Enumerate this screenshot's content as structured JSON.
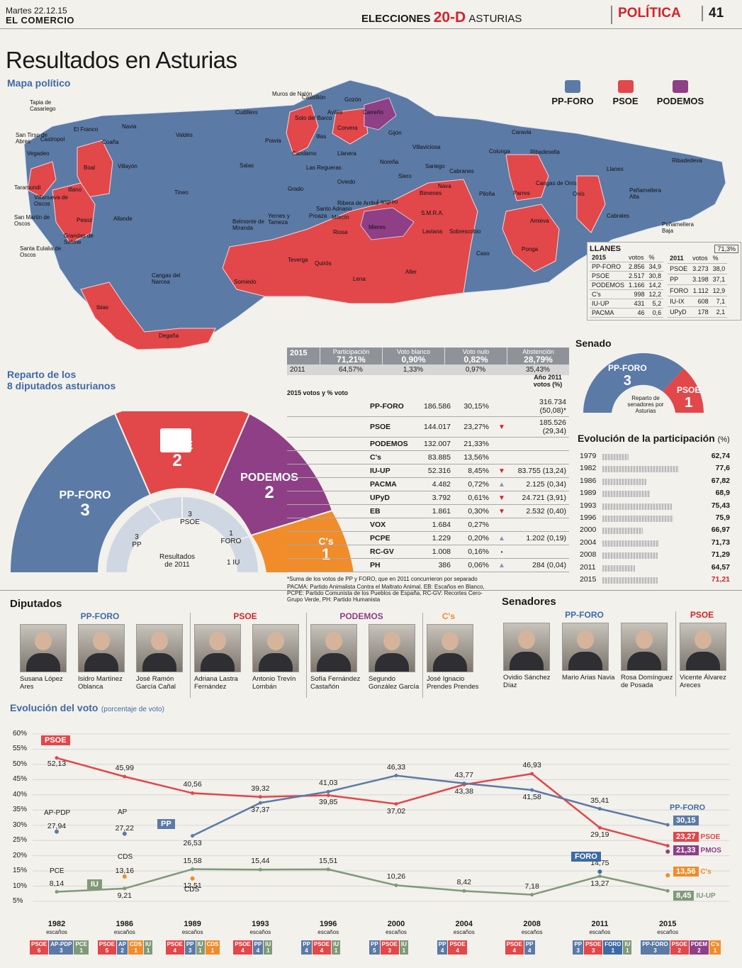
{
  "header": {
    "date": "Martes 22.12.15",
    "paper": "EL COMERCIO",
    "elecciones": "ELECCIONES",
    "code": "20-D",
    "region": "ASTURIAS",
    "section": "POLÍTICA",
    "page": "41"
  },
  "title": "Resultados en Asturias",
  "map": {
    "subtitle": "Mapa político",
    "legend": [
      {
        "name": "PP-FORO",
        "color": "#5b7aa6"
      },
      {
        "name": "PSOE",
        "color": "#e2474a"
      },
      {
        "name": "PODEMOS",
        "color": "#8e3f86"
      }
    ],
    "labels": [
      "Tapia de Casariego",
      "San Tirso de Abres",
      "Castropol",
      "El Franco",
      "Navia",
      "Coaña",
      "Vegadeo",
      "Taramundi",
      "Boal",
      "Villanueva de Oscos",
      "Illano",
      "San Martín de Oscos",
      "Pesoz",
      "Santa Eulalia de Oscos",
      "Grandas de Salime",
      "Villayón",
      "Valdés",
      "Cudillero",
      "Muros de Nalón",
      "Castrillón",
      "Gozón",
      "Carreño",
      "Avilés",
      "Soto del Barco",
      "Corvera",
      "Pravia",
      "Illas",
      "Gijón",
      "Candamo",
      "Llanera",
      "Salas",
      "Las Regueras",
      "Noreña",
      "Villaviciosa",
      "Colunga",
      "Caravia",
      "Ribadesella",
      "Llanes",
      "Ribadedeva",
      "Tineo",
      "Grado",
      "Oviedo",
      "Siero",
      "Sariego",
      "Cabranes",
      "Nava",
      "Piloña",
      "Parres",
      "Cangas de Onís",
      "Onís",
      "Peñamellera Alta",
      "Peñamellera Baja",
      "Cabrales",
      "Allande",
      "Belmonte de Miranda",
      "Yernes y Tameza",
      "Proaza",
      "Santo Adriano",
      "Ribera de Arriba",
      "Morcín",
      "Riosa",
      "Mieres",
      "Langreo",
      "Bimenes",
      "S.M.R.A.",
      "Laviana",
      "Sobrescobio",
      "Caso",
      "Amieva",
      "Ponga",
      "Cangas del Narcea",
      "Teverga",
      "Quirós",
      "Somiedo",
      "Lena",
      "Aller",
      "Ibias",
      "Degaña"
    ]
  },
  "llanes": {
    "title": "LLANES",
    "pct": "71,3%",
    "y2015": "2015",
    "y2011": "2011",
    "h_votos": "votos",
    "h_pct": "%",
    "rows2015": [
      [
        "PP-FORO",
        "2.856",
        "34,9"
      ],
      [
        "PSOE",
        "2.517",
        "30,8"
      ],
      [
        "PODEMOS",
        "1.166",
        "14,2"
      ],
      [
        "C's",
        "998",
        "12,2"
      ],
      [
        "IU-UP",
        "431",
        "5,2"
      ],
      [
        "PACMA",
        "46",
        "0,6"
      ]
    ],
    "rows2011": [
      [
        "PSOE",
        "3.273",
        "38,0"
      ],
      [
        "PP",
        "3.198",
        "37,1"
      ],
      [
        "FORO",
        "1.112",
        "12,9"
      ],
      [
        "IU-IX",
        "608",
        "7,1"
      ],
      [
        "UPyD",
        "178",
        "2,1"
      ]
    ]
  },
  "senado": {
    "title": "Senado",
    "ppforo_label": "PP-FORO",
    "ppforo_seats": "3",
    "psoe_label": "PSOE",
    "psoe_seats": "1",
    "center": "Reparto de senadores por Asturias"
  },
  "reparto": {
    "title1": "Reparto de los",
    "title2": "8 diputados asturianos",
    "psoe_label": "PSOE",
    "psoe_seats": "2",
    "podemos_label": "PODEMOS",
    "podemos_seats": "2",
    "ppforo_label": "PP-FORO",
    "ppforo_seats": "3",
    "cs_label": "C's",
    "cs_seats": "1",
    "r2011_psoe_n": "3",
    "r2011_psoe": "PSOE",
    "r2011_pp_n": "3",
    "r2011_pp": "PP",
    "r2011_foro_n": "1",
    "r2011_foro": "FORO",
    "r2011_iu": "1 IU",
    "r2011_center": "Resultados de 2011"
  },
  "summary": {
    "y2015": "2015",
    "y2011": "2011",
    "cols": [
      "Participación",
      "Voto blanco",
      "Voto nulo",
      "Abstención"
    ],
    "v2015": [
      "71,21%",
      "0,90%",
      "0,82%",
      "28,79%"
    ],
    "v2011": [
      "64,57%",
      "1,33%",
      "0,97%",
      "35,43%"
    ]
  },
  "results": {
    "h1": "2015 votos y % voto",
    "h2": "Año 2011 votos (%)",
    "rows": [
      {
        "party": "PP-FORO",
        "votes": "186.586",
        "pct": "30,15%",
        "arrow": "",
        "v2011": "316.734 (50,08)*"
      },
      {
        "party": "PSOE",
        "votes": "144.017",
        "pct": "23,27%",
        "arrow": "down",
        "v2011": "185.526 (29,34)"
      },
      {
        "party": "PODEMOS",
        "votes": "132.007",
        "pct": "21,33%",
        "arrow": "",
        "v2011": ""
      },
      {
        "party": "C's",
        "votes": "83.885",
        "pct": "13,56%",
        "arrow": "",
        "v2011": ""
      },
      {
        "party": "IU-UP",
        "votes": "52.316",
        "pct": "8,45%",
        "arrow": "down",
        "v2011": "83.755 (13,24)"
      },
      {
        "party": "PACMA",
        "votes": "4.482",
        "pct": "0,72%",
        "arrow": "up",
        "v2011": "2.125 (0,34)"
      },
      {
        "party": "UPyD",
        "votes": "3.792",
        "pct": "0,61%",
        "arrow": "down",
        "v2011": "24.721 (3,91)"
      },
      {
        "party": "EB",
        "votes": "1.861",
        "pct": "0,30%",
        "arrow": "down",
        "v2011": "2.532 (0,40)"
      },
      {
        "party": "VOX",
        "votes": "1.684",
        "pct": "0,27%",
        "arrow": "",
        "v2011": ""
      },
      {
        "party": "PCPE",
        "votes": "1.229",
        "pct": "0,20%",
        "arrow": "up",
        "v2011": "1.202 (0,19)"
      },
      {
        "party": "RC-GV",
        "votes": "1.008",
        "pct": "0,16%",
        "arrow": "dot",
        "v2011": ""
      },
      {
        "party": "PH",
        "votes": "386",
        "pct": "0,06%",
        "arrow": "up",
        "v2011": "284 (0,04)"
      }
    ],
    "note1": "*Suma de los votos de PP y FORO, que en 2011 concurrieron por separado",
    "note2": "PACMA: Partido Animalista Contra el Maltrato Animal. EB: Escaños en Blanco, PCPE: Partido Comunista de los Pueblos de España, RC-GV: Recortes Cero-Grupo Verde, PH: Partido Humanista"
  },
  "participacion": {
    "title": "Evolución de la participación",
    "unit": "(%)",
    "rows": [
      {
        "year": "1979",
        "val": "62,74",
        "n": 62.74
      },
      {
        "year": "1982",
        "val": "77,6",
        "n": 77.6
      },
      {
        "year": "1986",
        "val": "67,82",
        "n": 67.82
      },
      {
        "year": "1989",
        "val": "68,9",
        "n": 68.9
      },
      {
        "year": "1993",
        "val": "75,43",
        "n": 75.43
      },
      {
        "year": "1996",
        "val": "75,9",
        "n": 75.9
      },
      {
        "year": "2000",
        "val": "66,97",
        "n": 66.97
      },
      {
        "year": "2004",
        "val": "71,73",
        "n": 71.73
      },
      {
        "year": "2008",
        "val": "71,29",
        "n": 71.29
      },
      {
        "year": "2011",
        "val": "64,57",
        "n": 64.57
      },
      {
        "year": "2015",
        "val": "71,21",
        "n": 71.21
      }
    ]
  },
  "diputados": {
    "title": "Diputados",
    "groups": [
      {
        "party": "PP-FORO",
        "color": "#3e6aa6",
        "people": [
          "Susana López Ares",
          "Isidro Martínez Oblanca",
          "José Ramón García Cañal"
        ]
      },
      {
        "party": "PSOE",
        "color": "#d2232a",
        "people": [
          "Adriana Lastra Fernández",
          "Antonio Trevín Lombán"
        ]
      },
      {
        "party": "PODEMOS",
        "color": "#8e3f86",
        "people": [
          "Sofía Fernández Castañón",
          "Segundo González García"
        ]
      },
      {
        "party": "C's",
        "color": "#f08c2a",
        "people": [
          "José Ignacio Prendes Prendes"
        ]
      }
    ]
  },
  "senadores": {
    "title": "Senadores",
    "groups": [
      {
        "party": "PP-FORO",
        "color": "#3e6aa6",
        "people": [
          "Ovidio Sánchez Díaz",
          "Mario Arias Navia",
          "Rosa Domínguez de Posada"
        ]
      },
      {
        "party": "PSOE",
        "color": "#d2232a",
        "people": [
          "Vicente Álvarez Areces"
        ]
      }
    ]
  },
  "evolucion": {
    "title": "Evolución del voto",
    "unit": "(porcentaje de voto)",
    "yticks": [
      "60%",
      "55%",
      "50%",
      "45%",
      "40%",
      "35%",
      "30%",
      "25%",
      "20%",
      "15%",
      "10%",
      "5%"
    ],
    "years": [
      "1982",
      "1986",
      "1989",
      "1993",
      "1996",
      "2000",
      "2004",
      "2008",
      "2011",
      "2015"
    ],
    "escanos": "escaños",
    "chart_data": {
      "type": "line",
      "categories": [
        "1982",
        "1986",
        "1989",
        "1993",
        "1996",
        "2000",
        "2004",
        "2008",
        "2011",
        "2015"
      ],
      "ylim": [
        5,
        60
      ],
      "series": [
        {
          "name": "PSOE",
          "color": "#e2474a",
          "values": [
            52.13,
            45.99,
            40.56,
            39.32,
            39.85,
            37.02,
            43.38,
            46.93,
            29.19,
            23.27
          ]
        },
        {
          "name": "PP",
          "color": "#5b7aa6",
          "values": [
            null,
            null,
            26.53,
            37.37,
            41.03,
            46.33,
            43.77,
            41.58,
            35.41,
            30.15
          ]
        },
        {
          "name": "IU",
          "color": "#7f9a78",
          "values": [
            8.14,
            9.21,
            15.58,
            15.44,
            15.51,
            10.26,
            8.42,
            7.18,
            13.27,
            8.45
          ]
        }
      ],
      "points": [
        {
          "label": "AP-PDP",
          "x": "1982",
          "y": 27.94
        },
        {
          "label": "AP",
          "x": "1986",
          "y": 27.22
        },
        {
          "label": "CDS",
          "x": "1986",
          "y": 13.16
        },
        {
          "label": "CDS",
          "x": "1989",
          "y": 12.51
        },
        {
          "label": "FORO",
          "x": "2011",
          "y": 14.75
        },
        {
          "label": "PMOS",
          "x": "2015",
          "y": 21.33
        },
        {
          "label": "C's",
          "x": "2015",
          "y": 13.56
        }
      ]
    },
    "data_labels": [
      "52,13",
      "45,99",
      "40,56",
      "39,32",
      "39,85",
      "37,02",
      "43,38",
      "46,93",
      "29,19",
      "26,53",
      "37,37",
      "41,03",
      "46,33",
      "43,77",
      "41,58",
      "35,41",
      "8,14",
      "9,21",
      "15,58",
      "15,44",
      "15,51",
      "10,26",
      "8,42",
      "7,18",
      "13,27",
      "27,94",
      "27,22",
      "13,16",
      "12,51",
      "14,75"
    ],
    "badges": {
      "psoe": "PSOE",
      "pp": "PP",
      "iu": "IU",
      "foro": "FORO",
      "ppforo": "PP-FORO",
      "apdp": "AP-PDP",
      "ap": "AP",
      "pce": "PCE",
      "cds1": "CDS",
      "cds2": "CDS"
    },
    "end": [
      {
        "val": "30,15",
        "name": "",
        "color": "#5b7aa6"
      },
      {
        "val": "23,27",
        "name": "PSOE",
        "color": "#e2474a"
      },
      {
        "val": "21,33",
        "name": "PMOS",
        "color": "#8e3f86"
      },
      {
        "val": "13,56",
        "name": "C's",
        "color": "#f08c2a"
      },
      {
        "val": "8,45",
        "name": "IU-UP",
        "color": "#7f9a78"
      }
    ],
    "seats": [
      [
        [
          "PSOE",
          "6",
          "#e2474a"
        ],
        [
          "AP-PDP",
          "3",
          "#5b7aa6"
        ],
        [
          "PCE",
          "1",
          "#7f9a78"
        ]
      ],
      [
        [
          "PSOE",
          "5",
          "#e2474a"
        ],
        [
          "AP",
          "2",
          "#5b7aa6"
        ],
        [
          "CDS",
          "1",
          "#f08c2a"
        ],
        [
          "IU",
          "1",
          "#7f9a78"
        ]
      ],
      [
        [
          "PSOE",
          "4",
          "#e2474a"
        ],
        [
          "PP",
          "3",
          "#5b7aa6"
        ],
        [
          "IU",
          "1",
          "#7f9a78"
        ],
        [
          "CDS",
          "1",
          "#f08c2a"
        ]
      ],
      [
        [
          "PSOE",
          "4",
          "#e2474a"
        ],
        [
          "PP",
          "4",
          "#5b7aa6"
        ],
        [
          "IU",
          "1",
          "#7f9a78"
        ]
      ],
      [
        [
          "PP",
          "4",
          "#5b7aa6"
        ],
        [
          "PSOE",
          "4",
          "#e2474a"
        ],
        [
          "IU",
          "1",
          "#7f9a78"
        ]
      ],
      [
        [
          "PP",
          "5",
          "#5b7aa6"
        ],
        [
          "PSOE",
          "3",
          "#e2474a"
        ],
        [
          "IU",
          "1",
          "#7f9a78"
        ]
      ],
      [
        [
          "PP",
          "4",
          "#5b7aa6"
        ],
        [
          "PSOE",
          "4",
          "#e2474a"
        ]
      ],
      [
        [
          "PSOE",
          "4",
          "#e2474a"
        ],
        [
          "PP",
          "4",
          "#5b7aa6"
        ]
      ],
      [
        [
          "PP",
          "3",
          "#5b7aa6"
        ],
        [
          "PSOE",
          "3",
          "#e2474a"
        ],
        [
          "FORO",
          "1",
          "#3e6aa6"
        ],
        [
          "IU",
          "1",
          "#7f9a78"
        ]
      ],
      [
        [
          "PP-FORO",
          "3",
          "#5b7aa6"
        ],
        [
          "PSOE",
          "2",
          "#e2474a"
        ],
        [
          "PDEM",
          "2",
          "#8e3f86"
        ],
        [
          "C's",
          "1",
          "#f08c2a"
        ]
      ]
    ]
  }
}
